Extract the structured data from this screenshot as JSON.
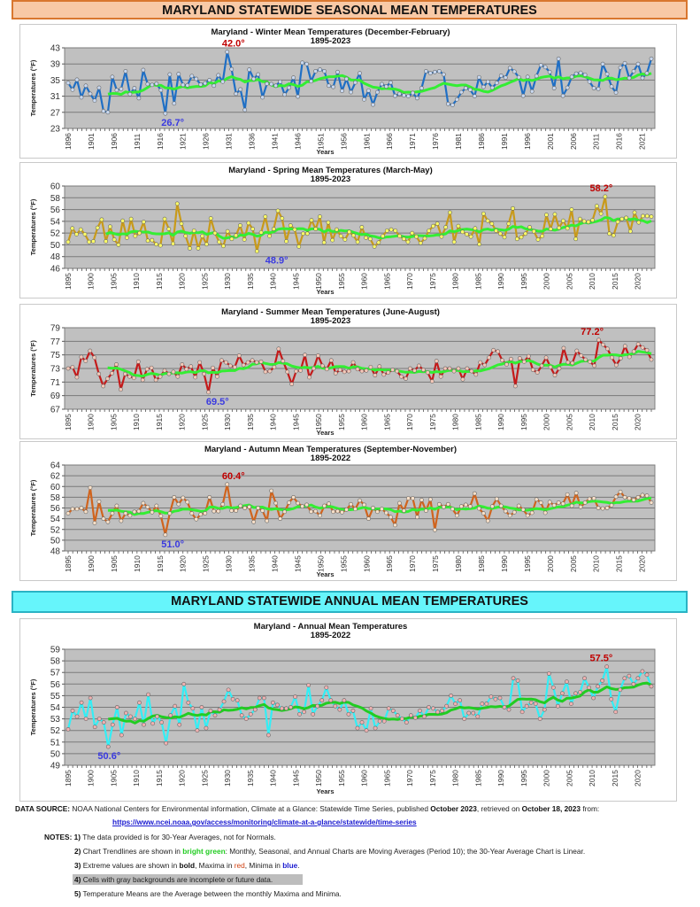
{
  "banners": {
    "seasonal": "MARYLAND STATEWIDE SEASONAL MEAN TEMPERATURES",
    "annual": "MARYLAND STATEWIDE ANNUAL MEAN TEMPERATURES"
  },
  "chart_data": [
    {
      "id": "winter",
      "type": "line",
      "title": "Maryland - Winter Mean Temperatures (December-February)",
      "subtitle": "1895-2023",
      "xlabel": "Years",
      "ylabel": "Temperatures (°F)",
      "ylim": [
        23,
        43
      ],
      "yticks": [
        23,
        27,
        31,
        35,
        39,
        43
      ],
      "xticks": [
        1896,
        1901,
        1906,
        1911,
        1916,
        1921,
        1926,
        1931,
        1936,
        1941,
        1946,
        1951,
        1956,
        1961,
        1966,
        1971,
        1976,
        1981,
        1986,
        1991,
        1996,
        2001,
        2006,
        2011,
        2016,
        2021
      ],
      "x_start": 1896,
      "x_end": 2023,
      "line_color": "#1f6fc5",
      "marker_fill": "#c8d8f0",
      "trend_color": "#33ee33",
      "max_label": "42.0°",
      "max_year": 1932,
      "min_label": "26.7°",
      "min_year": 1918,
      "grid": true,
      "series": [
        {
          "name": "Winter Mean",
          "values": [
            34.3,
            32.6,
            35.1,
            30.7,
            33.6,
            31.6,
            29.9,
            33.1,
            27.3,
            27.0,
            35.8,
            32.5,
            32.8,
            37.2,
            31.5,
            33.0,
            30.5,
            37.5,
            34.0,
            33.8,
            34.1,
            32.5,
            26.7,
            36.4,
            29.2,
            36.5,
            33.8,
            33.7,
            36.0,
            35.3,
            33.9,
            34.2,
            35.0,
            33.6,
            36.2,
            34.6,
            42.0,
            37.7,
            31.6,
            32.7,
            27.6,
            37.6,
            35.3,
            36.4,
            30.7,
            34.1,
            34.0,
            33.6,
            34.6,
            31.4,
            33.1,
            35.6,
            30.9,
            39.3,
            39.0,
            34.7,
            37.2,
            37.6,
            37.2,
            33.6,
            33.3,
            37.0,
            32.3,
            35.3,
            32.0,
            34.4,
            36.7,
            30.2,
            32.4,
            28.9,
            32.0,
            34.0,
            33.4,
            34.4,
            31.1,
            31.6,
            31.2,
            31.0,
            31.8,
            30.5,
            33.0,
            37.2,
            36.7,
            37.0,
            37.2,
            36.4,
            29.1,
            28.8,
            30.2,
            32.0,
            33.0,
            32.6,
            31.0,
            35.7,
            33.3,
            34.6,
            33.1,
            34.3,
            36.1,
            35.6,
            38.0,
            37.1,
            35.7,
            31.1,
            35.8,
            32.2,
            36.0,
            38.7,
            38.2,
            37.0,
            33.0,
            40.3,
            31.1,
            33.1,
            35.8,
            36.6,
            36.8,
            36.3,
            34.6,
            33.0,
            32.8,
            39.0,
            36.5,
            33.4,
            31.9,
            38.1,
            39.2,
            35.5,
            37.2,
            39.0,
            35.5,
            36.7,
            40.3
          ]
        },
        {
          "name": "10-yr Moving Average",
          "values": []
        }
      ]
    },
    {
      "id": "spring",
      "type": "line",
      "title": "Maryland - Spring Mean Temperatures (March-May)",
      "subtitle": "1895-2023",
      "xlabel": "Years",
      "ylabel": "Temperatures (°F)",
      "ylim": [
        46,
        60
      ],
      "yticks": [
        46,
        48,
        50,
        52,
        54,
        56,
        58,
        60
      ],
      "xticks": [
        1895,
        1900,
        1905,
        1910,
        1915,
        1920,
        1925,
        1930,
        1935,
        1940,
        1945,
        1950,
        1955,
        1960,
        1965,
        1970,
        1975,
        1980,
        1985,
        1990,
        1995,
        2000,
        2005,
        2010,
        2015,
        2020
      ],
      "x_start": 1895,
      "x_end": 2023,
      "line_color": "#c89a1a",
      "marker_fill": "#ffff66",
      "trend_color": "#33ee33",
      "max_label": "58.2°",
      "max_year": 2012,
      "min_label": "48.9°",
      "min_year": 1940,
      "grid": true,
      "series": [
        {
          "name": "Spring Mean",
          "values": [
            50.5,
            52.8,
            51.8,
            52.6,
            51.8,
            50.5,
            50.6,
            52.9,
            54.3,
            50.6,
            53.1,
            50.9,
            50.0,
            54.1,
            51.2,
            54.4,
            51.5,
            52.0,
            53.9,
            50.7,
            50.8,
            50.1,
            49.9,
            54.4,
            52.7,
            50.2,
            57.0,
            53.6,
            51.5,
            49.4,
            52.4,
            49.4,
            51.5,
            50.1,
            54.5,
            52.0,
            50.5,
            49.8,
            52.3,
            51.0,
            51.6,
            53.3,
            50.9,
            53.7,
            52.7,
            48.9,
            52.1,
            54.8,
            51.5,
            52.7,
            55.8,
            54.5,
            50.6,
            53.3,
            52.6,
            49.7,
            51.9,
            51.9,
            54.2,
            52.7,
            54.8,
            50.4,
            53.8,
            50.8,
            52.6,
            51.5,
            50.9,
            52.2,
            51.6,
            50.5,
            53.0,
            51.2,
            51.0,
            49.7,
            50.4,
            51.5,
            52.4,
            52.6,
            52.4,
            51.5,
            51.0,
            50.5,
            52.0,
            51.4,
            50.3,
            51.1,
            52.4,
            53.2,
            53.6,
            51.4,
            53.0,
            55.5,
            50.5,
            53.2,
            52.2,
            51.8,
            51.4,
            52.8,
            50.1,
            55.3,
            54.1,
            53.6,
            52.4,
            51.9,
            51.3,
            53.6,
            56.2,
            51.0,
            51.3,
            51.9,
            53.0,
            52.3,
            50.9,
            51.5,
            55.1,
            52.7,
            55.2,
            52.9,
            54.1,
            52.8,
            56.0,
            51.0,
            54.4,
            54.0,
            53.9,
            54.2,
            56.6,
            55.3,
            58.2,
            51.9,
            51.6,
            53.9,
            54.4,
            54.6,
            52.3,
            55.5,
            53.8,
            54.9,
            54.9,
            54.8
          ]
        },
        {
          "name": "10-yr Moving Average",
          "values": []
        }
      ]
    },
    {
      "id": "summer",
      "type": "line",
      "title": "Maryland - Summer Mean Temperatures (June-August)",
      "subtitle": "1895-2023",
      "xlabel": "Years",
      "ylabel": "Temperatures (°F)",
      "ylim": [
        67,
        79
      ],
      "yticks": [
        67,
        69,
        71,
        73,
        75,
        77,
        79
      ],
      "xticks": [
        1895,
        1900,
        1905,
        1910,
        1915,
        1920,
        1925,
        1930,
        1935,
        1940,
        1945,
        1950,
        1955,
        1960,
        1965,
        1970,
        1975,
        1980,
        1985,
        1990,
        1995,
        2000,
        2005,
        2010,
        2015,
        2020
      ],
      "x_start": 1895,
      "x_end": 2023,
      "line_color": "#c41a1a",
      "marker_fill": "#f5c8b8",
      "trend_color": "#33ee33",
      "max_label": "77.2°",
      "max_year": 2010,
      "min_label": "69.5°",
      "min_year": 1927,
      "grid": true,
      "series": [
        {
          "name": "Summer Mean",
          "values": [
            73.0,
            73.2,
            71.7,
            74.7,
            74.1,
            75.6,
            74.6,
            72.2,
            70.4,
            71.5,
            72.3,
            73.6,
            69.9,
            72.2,
            71.8,
            71.6,
            74.0,
            71.3,
            72.9,
            73.1,
            71.3,
            71.8,
            72.7,
            72.2,
            72.5,
            71.8,
            73.6,
            72.9,
            73.3,
            71.7,
            73.9,
            72.2,
            69.5,
            73.1,
            71.8,
            74.2,
            73.9,
            73.4,
            73.2,
            74.9,
            73.5,
            73.9,
            74.2,
            73.9,
            74.0,
            72.5,
            72.6,
            73.2,
            75.9,
            74.1,
            72.5,
            70.7,
            72.6,
            72.7,
            75.0,
            71.7,
            73.0,
            74.9,
            73.4,
            72.9,
            74.2,
            72.3,
            72.8,
            72.5,
            72.6,
            73.9,
            72.9,
            72.6,
            72.7,
            73.2,
            72.0,
            73.3,
            72.1,
            72.4,
            72.8,
            72.6,
            71.8,
            71.5,
            73.0,
            72.7,
            73.4,
            72.8,
            72.4,
            71.1,
            74.1,
            71.8,
            73.0,
            73.0,
            72.6,
            73.0,
            71.4,
            73.0,
            72.6,
            72.1,
            73.9,
            73.5,
            74.6,
            75.7,
            75.5,
            74.2,
            73.6,
            74.4,
            70.4,
            74.5,
            74.0,
            74.8,
            72.8,
            72.4,
            73.4,
            74.6,
            73.2,
            72.0,
            73.0,
            76.0,
            73.9,
            73.8,
            75.6,
            74.9,
            74.3,
            74.0,
            73.4,
            77.2,
            76.5,
            75.9,
            74.6,
            73.5,
            74.5,
            76.3,
            74.7,
            75.5,
            76.6,
            76.1,
            75.7,
            74.3
          ]
        },
        {
          "name": "10-yr Moving Average",
          "values": []
        }
      ]
    },
    {
      "id": "autumn",
      "type": "line",
      "title": "Maryland - Autumn Mean Temperatures (September-November)",
      "subtitle": "1895-2022",
      "xlabel": "Years",
      "ylabel": "Temperatures (°F)",
      "ylim": [
        48,
        64
      ],
      "yticks": [
        48,
        50,
        52,
        54,
        56,
        58,
        60,
        62,
        64
      ],
      "xticks": [
        1895,
        1900,
        1905,
        1910,
        1915,
        1920,
        1925,
        1930,
        1935,
        1940,
        1945,
        1950,
        1955,
        1960,
        1965,
        1970,
        1975,
        1980,
        1985,
        1990,
        1995,
        2000,
        2005,
        2010,
        2015,
        2020
      ],
      "x_start": 1895,
      "x_end": 2022,
      "line_color": "#d0641e",
      "marker_fill": "#f8e0c8",
      "trend_color": "#33ee33",
      "max_label": "60.4°",
      "max_year": 1931,
      "min_label": "51.0°",
      "min_year": 1917,
      "grid": true,
      "series": [
        {
          "name": "Autumn Mean",
          "values": [
            55.0,
            55.8,
            55.8,
            56.0,
            55.3,
            59.8,
            53.2,
            57.2,
            54.0,
            53.4,
            55.0,
            56.4,
            53.6,
            55.0,
            54.6,
            55.3,
            55.4,
            56.9,
            56.2,
            55.2,
            56.4,
            54.5,
            51.0,
            55.0,
            58.0,
            56.7,
            57.9,
            57.1,
            55.0,
            53.9,
            54.8,
            55.0,
            58.0,
            55.4,
            55.4,
            56.7,
            60.4,
            55.5,
            55.5,
            56.4,
            56.0,
            56.2,
            53.4,
            56.0,
            55.5,
            53.6,
            59.2,
            56.9,
            54.0,
            55.3,
            57.0,
            58.0,
            56.9,
            56.3,
            56.6,
            55.3,
            55.4,
            54.6,
            56.4,
            56.8,
            55.3,
            55.4,
            55.2,
            55.7,
            56.7,
            55.8,
            57.4,
            56.6,
            54.0,
            56.0,
            55.3,
            55.8,
            55.1,
            54.3,
            52.8,
            56.9,
            55.5,
            57.8,
            57.8,
            54.3,
            57.5,
            55.5,
            57.6,
            51.9,
            56.7,
            56.2,
            56.7,
            55.8,
            54.6,
            56.3,
            56.6,
            56.3,
            58.7,
            55.9,
            55.0,
            53.6,
            56.3,
            57.7,
            56.4,
            55.4,
            54.6,
            55.2,
            56.4,
            55.7,
            54.6,
            55.1,
            57.6,
            57.0,
            55.1,
            57.1,
            56.5,
            57.0,
            56.8,
            58.5,
            56.4,
            58.8,
            56.2,
            57.0,
            57.7,
            57.8,
            56.0,
            55.9,
            56.0,
            56.5,
            58.1,
            59.0,
            58.0,
            57.8,
            57.5,
            58.0,
            58.4,
            58.3,
            57.0
          ]
        },
        {
          "name": "10-yr Moving Average",
          "values": []
        }
      ]
    },
    {
      "id": "annual",
      "type": "line",
      "title": "Maryland - Annual Mean Temperatures",
      "subtitle": "1895-2022",
      "xlabel": "Years",
      "ylabel": "Temperatures (°F)",
      "ylim": [
        49,
        59
      ],
      "yticks": [
        49,
        50,
        51,
        52,
        53,
        54,
        55,
        56,
        57,
        58,
        59
      ],
      "xticks": [
        1895,
        1900,
        1905,
        1910,
        1915,
        1920,
        1925,
        1930,
        1935,
        1940,
        1945,
        1950,
        1955,
        1960,
        1965,
        1970,
        1975,
        1980,
        1985,
        1990,
        1995,
        2000,
        2005,
        2010,
        2015,
        2020
      ],
      "x_start": 1895,
      "x_end": 2023,
      "line_color": "#33eef5",
      "marker_fill": "#f0b0b0",
      "trend_color": "#22cc22",
      "max_label": "57.5°",
      "max_year": 2012,
      "min_label": "50.6°",
      "min_year": 1904,
      "grid": true,
      "series": [
        {
          "name": "Annual Mean",
          "values": [
            52.1,
            53.7,
            53.2,
            54.4,
            53.0,
            54.8,
            52.3,
            53.0,
            52.7,
            50.6,
            52.5,
            54.0,
            51.6,
            53.5,
            53.2,
            53.0,
            54.4,
            52.5,
            55.1,
            52.6,
            53.2,
            52.7,
            50.9,
            53.3,
            54.1,
            52.5,
            56.0,
            54.4,
            53.9,
            52.0,
            54.0,
            52.2,
            53.7,
            53.3,
            53.8,
            54.5,
            55.5,
            54.7,
            54.6,
            53.3,
            53.0,
            53.4,
            53.8,
            54.8,
            54.8,
            51.6,
            54.4,
            54.2,
            53.9,
            53.9,
            54.0,
            54.9,
            53.4,
            53.6,
            55.9,
            53.4,
            54.1,
            54.6,
            55.7,
            54.6,
            54.1,
            53.8,
            54.6,
            53.4,
            53.7,
            52.2,
            52.7,
            52.0,
            53.9,
            52.2,
            52.8,
            52.8,
            53.9,
            53.7,
            53.3,
            53.0,
            52.7,
            53.3,
            53.1,
            53.7,
            53.2,
            54.0,
            53.9,
            53.6,
            53.7,
            54.1,
            55.0,
            54.3,
            54.6,
            53.0,
            53.5,
            53.5,
            53.2,
            54.3,
            54.3,
            54.9,
            54.7,
            54.8,
            54.0,
            53.8,
            56.5,
            56.3,
            53.6,
            54.1,
            54.4,
            54.3,
            53.0,
            53.8,
            56.9,
            55.7,
            54.1,
            55.2,
            56.2,
            54.3,
            55.2,
            55.3,
            56.5,
            55.7,
            54.8,
            55.8,
            56.3,
            57.5,
            54.7,
            53.6,
            55.5,
            56.5,
            56.7,
            56.0,
            56.5,
            57.1,
            56.8,
            55.8
          ]
        },
        {
          "name": "10-yr Moving Average",
          "values": []
        }
      ]
    }
  ],
  "footer": {
    "data_source_label": "DATA SOURCE:",
    "data_source_text_1": "NOAA National Centers for Environmental information, Climate at a Glance: Statewide Time Series, published ",
    "published": "October 2023",
    "data_source_text_2": ", retrieved on ",
    "retrieved": "October 18, 2023",
    "data_source_text_3": " from:",
    "url": "https://www.ncei.noaa.gov/access/monitoring/climate-at-a-glance/statewide/time-series",
    "notes_label": "NOTES:",
    "notes": [
      {
        "num": "1)",
        "text": "The data provided is for 30-Year Averages, not for Normals."
      },
      {
        "num": "2)",
        "text_a": "Chart Trendlines are shown in ",
        "highlight": "bright green",
        "text_b": ": Monthly, Seasonal, and Annual Charts are Moving Averages (Period 10); the 30-Year Average Chart is Linear."
      },
      {
        "num": "3)",
        "text_a": "Extreme values are shown in ",
        "bold": "bold",
        "text_b": ", Maxima in ",
        "red": "red",
        "text_c": ", Minima in ",
        "blue": "blue",
        "text_d": "."
      },
      {
        "num": "4)",
        "text": "Cells with gray backgrounds are incomplete or future data."
      },
      {
        "num": "5)",
        "text": "Temperature Means are the Average between the monthly Maxima and Minima."
      }
    ]
  }
}
